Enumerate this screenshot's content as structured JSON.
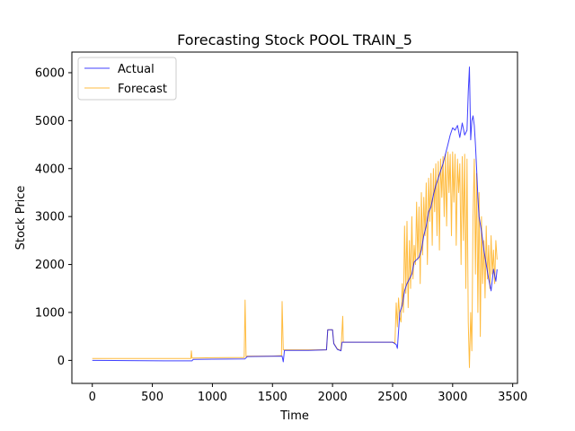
{
  "chart_data": {
    "type": "line",
    "title": "Forecasting Stock POOL TRAIN_5",
    "xlabel": "Time",
    "ylabel": "Stock Price",
    "xlim": [
      -170,
      3540
    ],
    "ylim": [
      -480,
      6430
    ],
    "xticks": [
      0,
      500,
      1000,
      1500,
      2000,
      2500,
      3000,
      3500
    ],
    "yticks": [
      0,
      1000,
      2000,
      3000,
      4000,
      5000,
      6000
    ],
    "grid": false,
    "legend_position": "upper-left",
    "series": [
      {
        "name": "Actual",
        "color": "#0000ff",
        "x": [
          0,
          300,
          600,
          830,
          840,
          1000,
          1270,
          1290,
          1500,
          1580,
          1590,
          1600,
          1610,
          1800,
          1950,
          1960,
          2000,
          2010,
          2040,
          2070,
          2080,
          2100,
          2300,
          2500,
          2530,
          2540,
          2560,
          2580,
          2600,
          2620,
          2640,
          2660,
          2680,
          2700,
          2720,
          2740,
          2760,
          2780,
          2800,
          2820,
          2840,
          2860,
          2880,
          2900,
          2920,
          2940,
          2960,
          2980,
          3000,
          3020,
          3040,
          3060,
          3080,
          3100,
          3120,
          3130,
          3140,
          3150,
          3160,
          3170,
          3180,
          3190,
          3200,
          3210,
          3220,
          3240,
          3260,
          3280,
          3300,
          3320,
          3340,
          3360,
          3370
        ],
        "y": [
          0,
          -5,
          -10,
          -10,
          20,
          25,
          30,
          80,
          85,
          90,
          -30,
          210,
          210,
          210,
          220,
          640,
          640,
          350,
          230,
          200,
          380,
          380,
          380,
          380,
          330,
          250,
          1000,
          1150,
          1450,
          1600,
          1700,
          1800,
          2050,
          2100,
          2150,
          2300,
          2600,
          2800,
          3100,
          3200,
          3450,
          3650,
          3800,
          3950,
          4100,
          4300,
          4500,
          4700,
          4850,
          4800,
          4900,
          4650,
          4950,
          4700,
          4800,
          5600,
          6120,
          4600,
          5000,
          5100,
          4900,
          4500,
          4000,
          3400,
          3000,
          2700,
          2300,
          2000,
          1700,
          1450,
          1900,
          1650,
          1900
        ]
      },
      {
        "name": "Forecast",
        "color": "#ffa500",
        "x": [
          0,
          300,
          600,
          820,
          825,
          830,
          840,
          1000,
          1265,
          1272,
          1280,
          1290,
          1500,
          1575,
          1580,
          1590,
          1600,
          1800,
          1950,
          1960,
          2000,
          2010,
          2040,
          2070,
          2085,
          2090,
          2100,
          2300,
          2500,
          2520,
          2530,
          2540,
          2550,
          2560,
          2570,
          2580,
          2590,
          2600,
          2610,
          2620,
          2630,
          2640,
          2650,
          2660,
          2670,
          2680,
          2690,
          2700,
          2710,
          2720,
          2730,
          2740,
          2750,
          2760,
          2770,
          2780,
          2790,
          2800,
          2810,
          2820,
          2830,
          2840,
          2850,
          2860,
          2870,
          2880,
          2890,
          2900,
          2910,
          2920,
          2930,
          2940,
          2950,
          2960,
          2970,
          2980,
          2990,
          3000,
          3010,
          3020,
          3030,
          3040,
          3050,
          3060,
          3070,
          3080,
          3090,
          3100,
          3110,
          3120,
          3130,
          3140,
          3150,
          3160,
          3170,
          3180,
          3190,
          3200,
          3210,
          3220,
          3230,
          3240,
          3250,
          3260,
          3270,
          3280,
          3290,
          3300,
          3310,
          3320,
          3330,
          3340,
          3350,
          3360,
          3370
        ],
        "y": [
          40,
          40,
          40,
          40,
          200,
          50,
          50,
          55,
          60,
          1260,
          80,
          90,
          90,
          100,
          1230,
          220,
          220,
          220,
          220,
          640,
          640,
          360,
          240,
          210,
          920,
          380,
          380,
          380,
          380,
          360,
          1200,
          700,
          1300,
          900,
          800,
          1600,
          1000,
          2800,
          1400,
          2900,
          1100,
          2500,
          1500,
          3000,
          1700,
          2400,
          2000,
          3300,
          2100,
          3200,
          1600,
          3500,
          2200,
          3400,
          2600,
          3700,
          2000,
          3800,
          2900,
          3900,
          2400,
          4000,
          3100,
          4100,
          2600,
          4150,
          2300,
          4200,
          3400,
          4250,
          3000,
          4300,
          2800,
          4350,
          3500,
          4300,
          2600,
          4350,
          3300,
          4300,
          2400,
          4200,
          3500,
          4100,
          2000,
          4250,
          2500,
          4300,
          1500,
          4200,
          800,
          -150,
          1000,
          200,
          3000,
          4200,
          1800,
          3900,
          1000,
          3500,
          500,
          3000,
          1600,
          2500,
          1300,
          2800,
          1700,
          2400,
          1500,
          2600,
          1800,
          2300,
          1600,
          2500,
          2100
        ]
      }
    ]
  }
}
